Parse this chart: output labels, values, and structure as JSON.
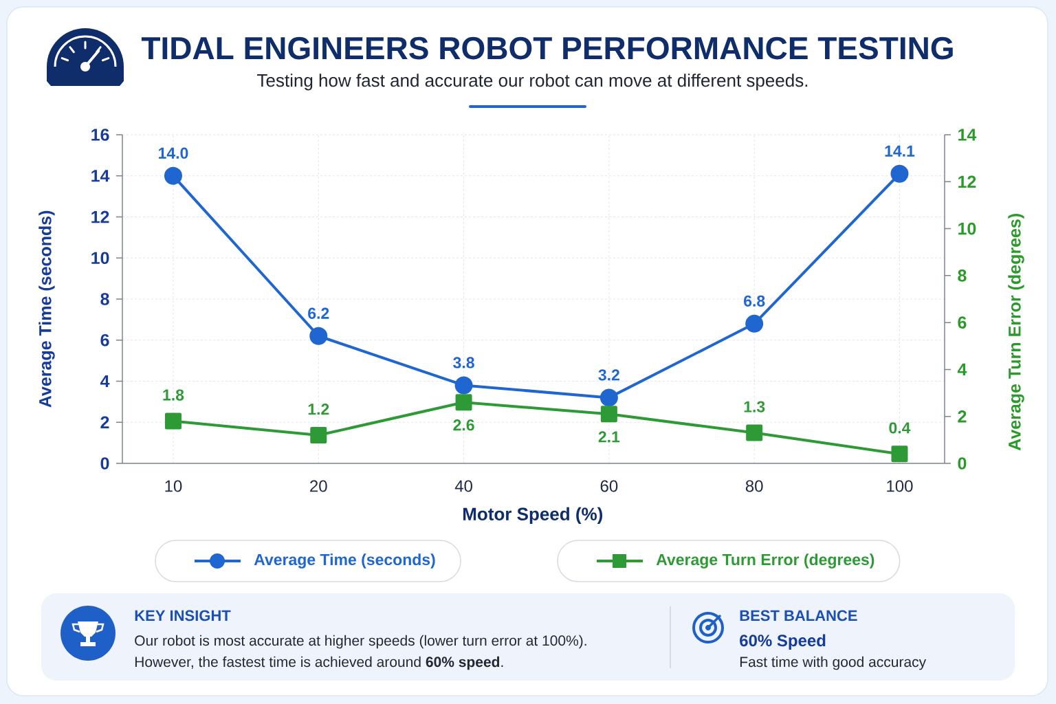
{
  "chart_data": {
    "type": "line",
    "title": "TIDAL ENGINEERS ROBOT PERFORMANCE TESTING",
    "subtitle": "Testing how fast and accurate our robot can move at different speeds.",
    "xlabel": "Motor Speed (%)",
    "ylabel": "Average Time (seconds)",
    "y2label": "Average Turn Error (degrees)",
    "categories": [
      "10",
      "20",
      "40",
      "60",
      "80",
      "100"
    ],
    "series": [
      {
        "name": "Average Time (seconds)",
        "color": "#1f66d1",
        "marker": "circle",
        "values": [
          14.0,
          6.2,
          3.8,
          3.2,
          6.8,
          14.1
        ],
        "value_labels": [
          "14.0",
          "6.2",
          "3.8",
          "3.2",
          "6.8",
          "14.1"
        ]
      },
      {
        "name": "Average Turn Error (degrees)",
        "color": "#2e9a35",
        "marker": "square",
        "axis": "y2",
        "values": [
          1.8,
          1.2,
          2.6,
          2.1,
          1.3,
          0.4
        ],
        "value_labels": [
          "1.8",
          "1.2",
          "2.6",
          "2.1",
          "1.3",
          "0.4"
        ]
      }
    ],
    "ylim": [
      0,
      16
    ],
    "yticks": [
      0,
      2,
      4,
      6,
      8,
      10,
      12,
      14,
      16
    ],
    "y2lim": [
      0,
      14
    ],
    "y2ticks": [
      0,
      2,
      4,
      6,
      8,
      10,
      12,
      14
    ],
    "grid": true,
    "legend": "bottom",
    "annotations": [
      "KEY INSIGHT",
      "Our robot is most accurate at higher speeds (lower turn error at 100%).",
      "However, the fastest time is achieved around **60% speed**.",
      "BEST BALANCE",
      "60% Speed",
      "Fast time with good accuracy"
    ]
  }
}
